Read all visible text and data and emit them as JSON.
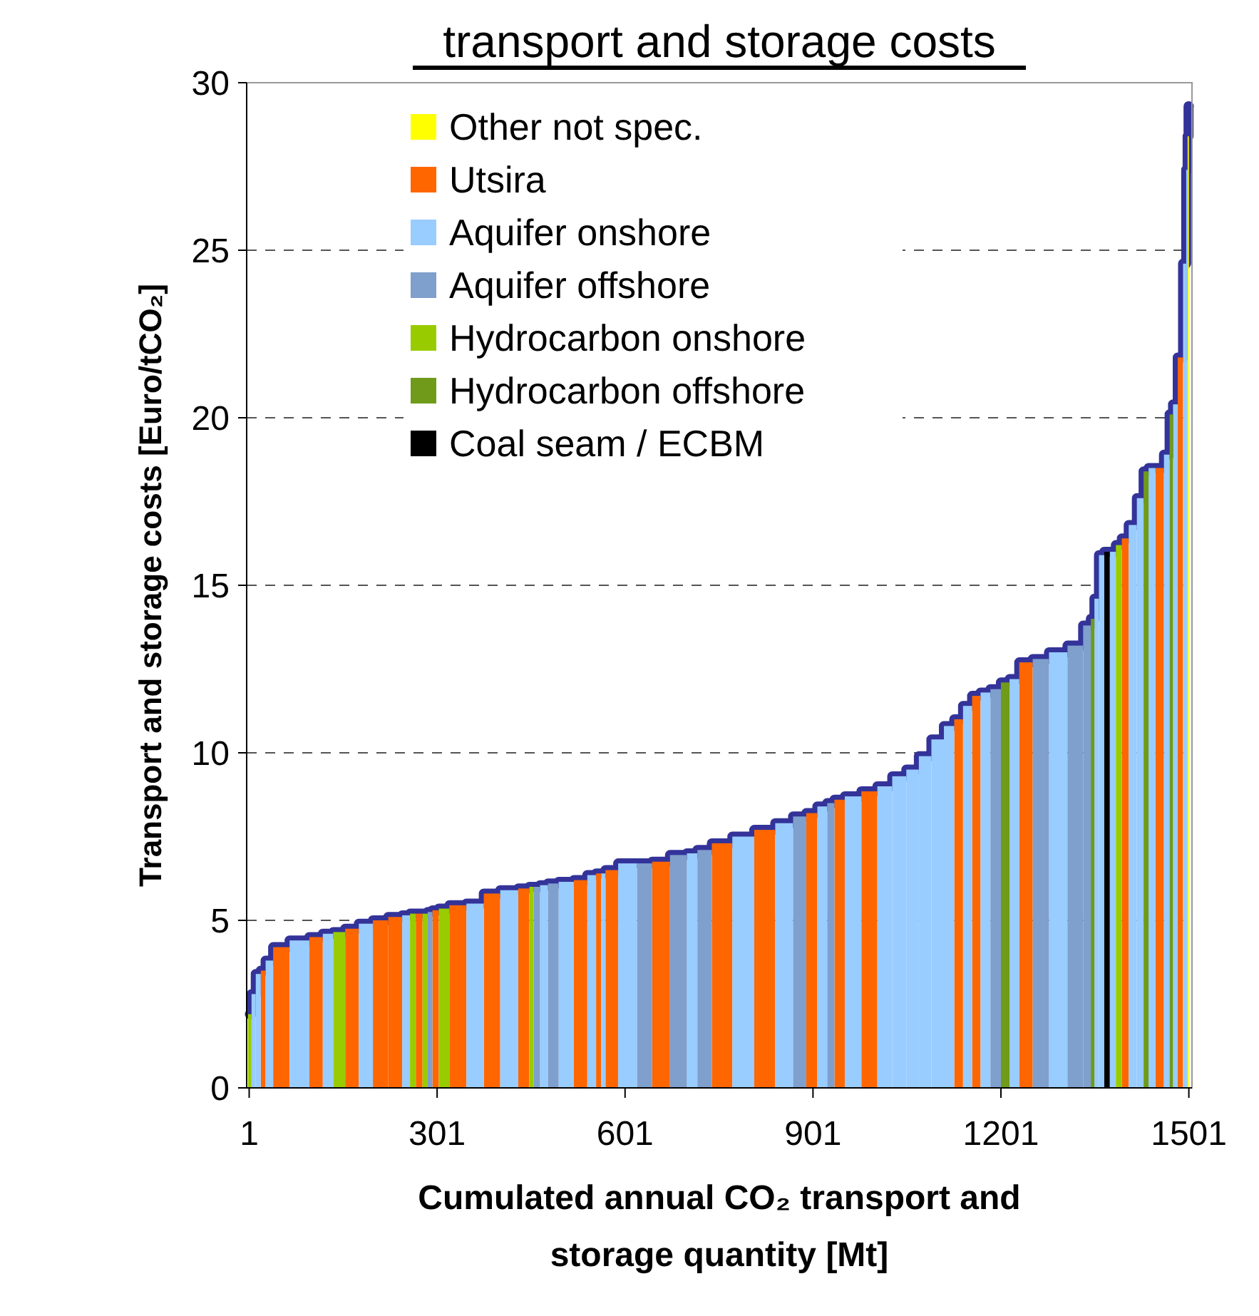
{
  "chart_data": {
    "type": "bar",
    "title": "transport and storage costs",
    "xlabel": "Cumulated annual CO₂ transport and storage quantity [Mt]",
    "ylabel": "Transport and storage costs [Euro/tCO₂]",
    "xlim": [
      -3,
      1506
    ],
    "xticks": [
      1,
      301,
      601,
      901,
      1201,
      1501
    ],
    "ylim": [
      0,
      30
    ],
    "yticks": [
      0,
      5,
      10,
      15,
      20,
      25,
      30
    ],
    "grid": "y",
    "legend": "top left",
    "series": [
      {
        "name": "Other not spec.",
        "color": "#ffff00",
        "x": [
          1500
        ],
        "values": [
          28.4
        ]
      },
      {
        "name": "Utsira",
        "color": "#ff6600",
        "x": [
          23.5,
          47.5,
          110.5,
          164.5,
          209.5,
          236.5,
          272.5,
          298,
          331.5,
          387,
          444.5,
          532.5,
          560.5,
          574,
          654,
          754,
          824,
          899.5,
          939.5,
          992.5,
          1133,
          1162,
          1239.5,
          1398.5,
          1455,
          1488
        ],
        "values": [
          3.5,
          4.2,
          4.5,
          4.75,
          5.0,
          5.1,
          5.2,
          5.3,
          5.45,
          5.8,
          5.95,
          6.2,
          6.4,
          6.5,
          6.75,
          7.3,
          7.7,
          8.2,
          8.6,
          8.85,
          11.0,
          11.7,
          12.7,
          16.4,
          18.5,
          21.8
        ]
      },
      {
        "name": "Aquifer onshore",
        "color": "#99ccff",
        "x": [
          7.5,
          15.5,
          31,
          83.5,
          126.5,
          187.5,
          254,
          364,
          416.5,
          472,
          506,
          549,
          565.5,
          606,
          708,
          790.5,
          857.5,
          916.5,
          964,
          1015,
          1040,
          1060,
          1080,
          1100,
          1120,
          1148,
          1175,
          1221,
          1291.5,
          1353,
          1362,
          1379.5,
          1411.5,
          1424.5,
          1440.5,
          1467.5,
          1478.5,
          1495.5,
          1498
        ],
        "values": [
          2.8,
          3.4,
          3.8,
          4.4,
          4.6,
          4.9,
          5.15,
          5.5,
          5.9,
          6.05,
          6.15,
          6.35,
          6.4,
          6.7,
          7.0,
          7.5,
          7.9,
          8.4,
          8.7,
          9.0,
          9.3,
          9.5,
          9.9,
          10.4,
          10.8,
          11.4,
          11.8,
          12.2,
          13.0,
          14.6,
          15.9,
          16.0,
          16.8,
          17.6,
          18.5,
          18.9,
          20.4,
          24.6,
          27.4
        ]
      },
      {
        "name": "Aquifer offshore",
        "color": "#7f9fcc",
        "x": [
          289,
          458.5,
          484,
          634.5,
          691.5,
          725,
          881,
          931,
          1193.5,
          1264,
          1323,
          1341.5
        ],
        "values": [
          5.25,
          6.0,
          6.1,
          6.7,
          6.95,
          7.1,
          8.1,
          8.5,
          11.9,
          12.8,
          13.2,
          13.8
        ]
      },
      {
        "name": "Hydrocarbon onshore",
        "color": "#99cc00",
        "x": [
          2,
          144,
          261.5,
          283,
          309.5,
          452,
          1389.5
        ],
        "values": [
          2.2,
          4.65,
          5.2,
          5.2,
          5.35,
          6.0,
          16.2
        ]
      },
      {
        "name": "Hydrocarbon offshore",
        "color": "#6f9a1a",
        "x": [
          1208.5,
          1347.5,
          1433,
          1473
        ],
        "values": [
          12.1,
          14.0,
          18.4,
          20.1
        ]
      },
      {
        "name": "Coal seam / ECBM",
        "color": "#000000",
        "x": [
          1370
        ],
        "values": [
          16.0
        ]
      },
      {
        "type": "step",
        "color": "#333399",
        "x": [
          2,
          7.5,
          15.5,
          23.5,
          31,
          47.5,
          83.5,
          110.5,
          126.5,
          144,
          164.5,
          187.5,
          209.5,
          236.5,
          254,
          261.5,
          272.5,
          283,
          289,
          298,
          309.5,
          331.5,
          364,
          387,
          416.5,
          444.5,
          452,
          458.5,
          472,
          484,
          506,
          532.5,
          549,
          560.5,
          565.5,
          574,
          606,
          634.5,
          654,
          691.5,
          708,
          725,
          754,
          790.5,
          824,
          857.5,
          881,
          899.5,
          916.5,
          931,
          939.5,
          964,
          992.5,
          1015,
          1040,
          1060,
          1080,
          1100,
          1120,
          1133,
          1148,
          1162,
          1175,
          1193.5,
          1208.5,
          1221,
          1239.5,
          1264,
          1291.5,
          1323,
          1341.5,
          1347.5,
          1353,
          1362,
          1370,
          1379.5,
          1389.5,
          1398.5,
          1411.5,
          1424.5,
          1433,
          1440.5,
          1455,
          1467.5,
          1473,
          1478.5,
          1488,
          1495.5,
          1498,
          1500,
          1501
        ],
        "values": [
          2.2,
          2.8,
          3.4,
          3.5,
          3.8,
          4.2,
          4.4,
          4.5,
          4.6,
          4.65,
          4.75,
          4.9,
          5.0,
          5.1,
          5.15,
          5.2,
          5.2,
          5.2,
          5.25,
          5.3,
          5.35,
          5.45,
          5.5,
          5.8,
          5.9,
          5.95,
          6.0,
          6.0,
          6.05,
          6.1,
          6.15,
          6.2,
          6.35,
          6.4,
          6.4,
          6.5,
          6.7,
          6.7,
          6.75,
          6.95,
          7.0,
          7.1,
          7.3,
          7.5,
          7.7,
          7.9,
          8.1,
          8.2,
          8.4,
          8.5,
          8.6,
          8.7,
          8.85,
          9.0,
          9.3,
          9.5,
          9.9,
          10.4,
          10.8,
          11.0,
          11.4,
          11.7,
          11.8,
          11.9,
          12.1,
          12.2,
          12.7,
          12.8,
          13.0,
          13.2,
          13.8,
          14.0,
          14.6,
          15.9,
          16.0,
          16.0,
          16.2,
          16.4,
          16.8,
          17.6,
          18.4,
          18.5,
          18.5,
          18.9,
          20.1,
          20.4,
          21.8,
          24.6,
          27.4,
          28.4,
          29.3
        ]
      }
    ]
  }
}
